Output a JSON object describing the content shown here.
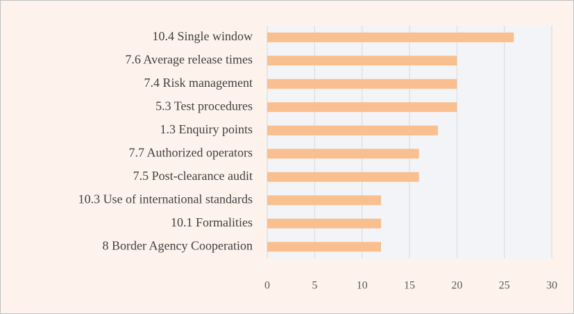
{
  "chart_data": {
    "type": "bar",
    "orientation": "horizontal",
    "categories": [
      "10.4 Single window",
      "7.6 Average release times",
      "7.4 Risk management",
      "5.3 Test procedures",
      "1.3 Enquiry points",
      "7.7 Authorized operators",
      "7.5 Post-clearance audit",
      "10.3 Use of international standards",
      "10.1 Formalities",
      "8 Border Agency Cooperation"
    ],
    "values": [
      26,
      20,
      20,
      20,
      18,
      16,
      16,
      12,
      12,
      12
    ],
    "color": "#f9bf8f",
    "xlim": [
      0,
      30
    ],
    "xticks": [
      0,
      5,
      10,
      15,
      20,
      25,
      30
    ],
    "grid": true
  }
}
